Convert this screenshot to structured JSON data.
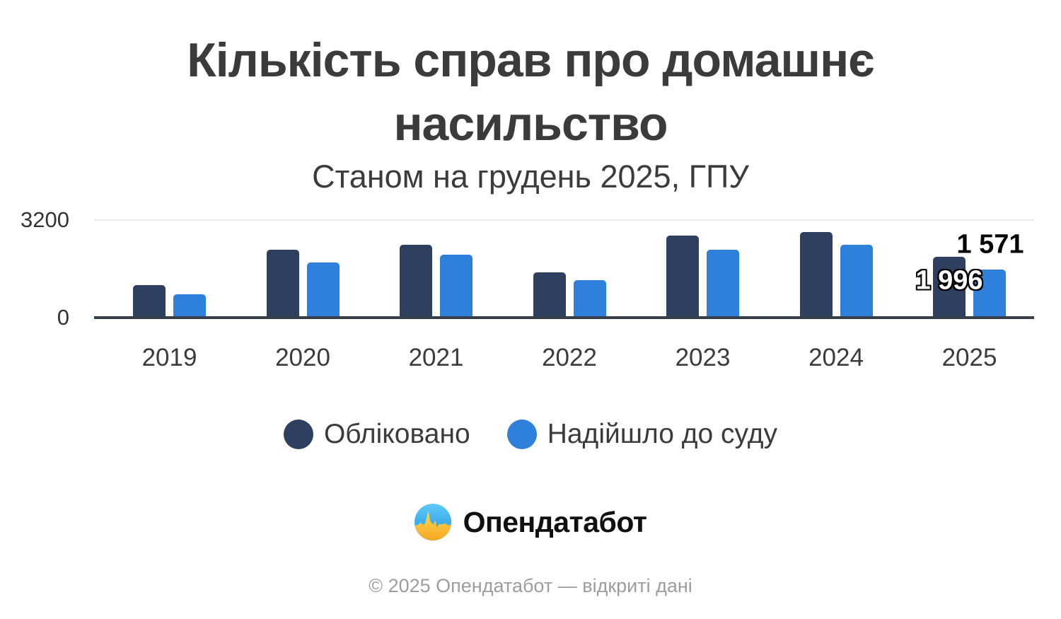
{
  "title": {
    "line1": "Кількість справ про домашнє",
    "line2": "насильство"
  },
  "subtitle": "Станом на грудень 2025, ГПУ",
  "y_axis": {
    "max_label": "3200",
    "zero_label": "0"
  },
  "annotations": [
    {
      "text": "1 996",
      "year": "2025",
      "series": "Обліковано"
    },
    {
      "text": "1 571",
      "year": "2025",
      "series": "Надійшло до суду"
    }
  ],
  "legend": [
    {
      "label": "Обліковано",
      "color": "#2e3f60"
    },
    {
      "label": "Надійшло до суду",
      "color": "#2e80da"
    }
  ],
  "logo": {
    "name": "Опендатабот"
  },
  "footer": "© 2025 Опендатабот — відкриті дані",
  "colors": {
    "recorded_bar": "#2e3f60",
    "to_court_bar": "#2e80da",
    "gridline": "#e9e9e9",
    "axis_line": "#363f4b",
    "flag_blue": "#2ba6ea",
    "flag_yellow": "#f9c236"
  },
  "chart_data": {
    "type": "bar",
    "title": "Кількість справ про домашнє насильство",
    "subtitle": "Станом на грудень 2025, ГПУ",
    "categories": [
      "2019",
      "2020",
      "2021",
      "2022",
      "2023",
      "2024",
      "2025"
    ],
    "series": [
      {
        "name": "Обліковано",
        "color": "#2e3f60",
        "values": [
          1075,
          2220,
          2395,
          1480,
          2690,
          2800,
          1996
        ]
      },
      {
        "name": "Надійшло до суду",
        "color": "#2e80da",
        "values": [
          765,
          1815,
          2065,
          1230,
          2220,
          2400,
          1571
        ]
      }
    ],
    "ylim": [
      0,
      3200
    ],
    "y_ticks": [
      0,
      3200
    ],
    "grid": "top-gridline-only",
    "legend_position": "bottom",
    "data_labels": {
      "2025": {
        "Обліковано": "1 996",
        "Надійшло до суду": "1 571"
      }
    }
  }
}
